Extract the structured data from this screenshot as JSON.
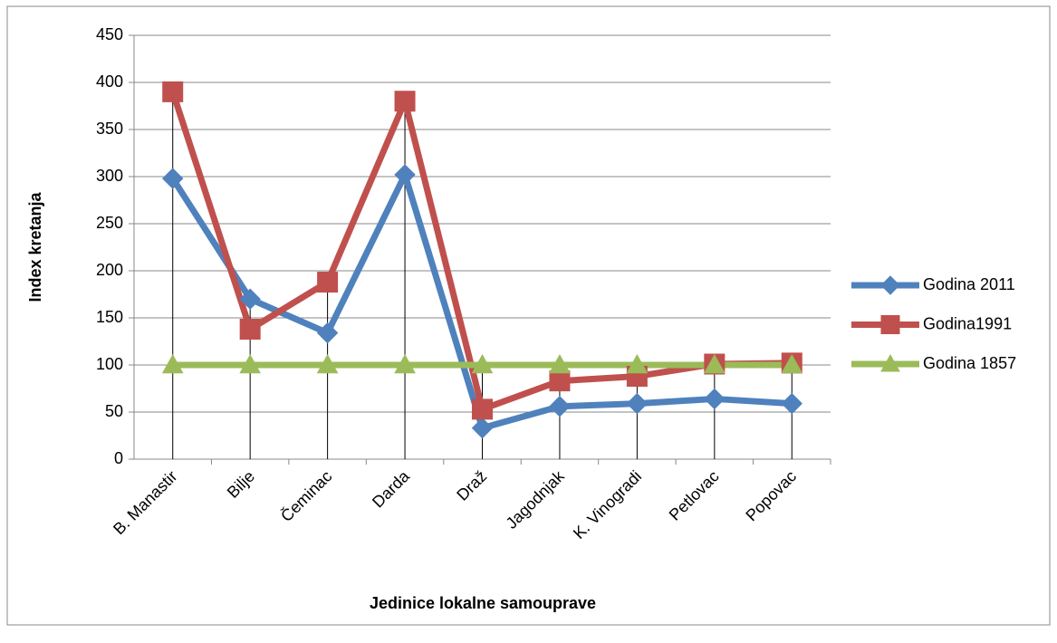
{
  "chart_data": {
    "type": "line",
    "xlabel": "Jedinice lokalne samouprave",
    "ylabel": "Index kretanja",
    "categories": [
      "B. Manastir",
      "Bilje",
      "Čeminac",
      "Darda",
      "Draž",
      "Jagodnjak",
      "K. Vinogradi",
      "Petlovac",
      "Popovac"
    ],
    "series": [
      {
        "name": "Godina 2011",
        "color": "#4f81bd",
        "marker": "diamond",
        "values": [
          298,
          170,
          134,
          302,
          33,
          56,
          59,
          64,
          59
        ]
      },
      {
        "name": "Godina1991",
        "color": "#c0504d",
        "marker": "square",
        "values": [
          390,
          138,
          188,
          380,
          53,
          83,
          88,
          101,
          102
        ]
      },
      {
        "name": "Godina 1857",
        "color": "#9bbb59",
        "marker": "triangle",
        "values": [
          100,
          100,
          100,
          100,
          100,
          100,
          100,
          100,
          100
        ]
      }
    ],
    "ylim": [
      0,
      450
    ],
    "yticks": [
      0,
      50,
      100,
      150,
      200,
      250,
      300,
      350,
      400,
      450
    ],
    "grid": true,
    "drop_lines": true,
    "legend": "right"
  }
}
